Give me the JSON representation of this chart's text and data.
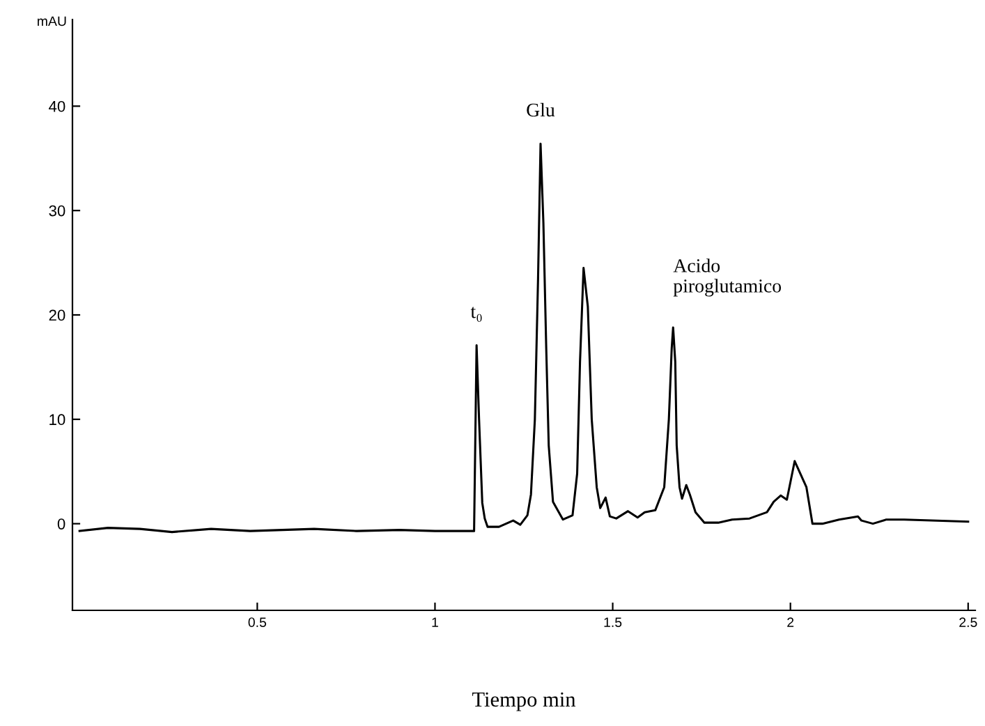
{
  "chart_data": {
    "type": "line",
    "xlabel": "Tiempo min",
    "ylabel": "mAU",
    "color": "#000000",
    "x": [
      0.0,
      0.08,
      0.17,
      0.26,
      0.37,
      0.48,
      0.57,
      0.66,
      0.78,
      0.9,
      1.0,
      1.06,
      1.11,
      1.117,
      1.124,
      1.133,
      1.14,
      1.148,
      1.18,
      1.22,
      1.24,
      1.26,
      1.27,
      1.281,
      1.29,
      1.297,
      1.305,
      1.313,
      1.32,
      1.332,
      1.36,
      1.387,
      1.4,
      1.408,
      1.418,
      1.43,
      1.441,
      1.455,
      1.465,
      1.48,
      1.492,
      1.51,
      1.543,
      1.57,
      1.59,
      1.62,
      1.645,
      1.658,
      1.666,
      1.67,
      1.676,
      1.68,
      1.688,
      1.695,
      1.707,
      1.717,
      1.733,
      1.758,
      1.797,
      1.836,
      1.885,
      1.934,
      1.953,
      1.973,
      1.99,
      2.012,
      2.045,
      2.062,
      2.09,
      2.137,
      2.19,
      2.2,
      2.232,
      2.27,
      2.32,
      2.5
    ],
    "values": [
      -0.7,
      -0.4,
      -0.5,
      -0.8,
      -0.5,
      -0.7,
      -0.6,
      -0.5,
      -0.7,
      -0.6,
      -0.7,
      -0.7,
      -0.7,
      17.1,
      10.0,
      2.0,
      0.5,
      -0.3,
      -0.3,
      0.3,
      -0.1,
      0.8,
      2.8,
      10.0,
      23.5,
      36.4,
      28.8,
      16.8,
      7.5,
      2.1,
      0.4,
      0.8,
      4.8,
      15.5,
      24.5,
      20.8,
      10.0,
      3.5,
      1.5,
      2.5,
      0.7,
      0.5,
      1.2,
      0.6,
      1.1,
      1.3,
      3.5,
      10.0,
      16.8,
      18.8,
      15.5,
      7.5,
      3.5,
      2.4,
      3.7,
      2.8,
      1.1,
      0.1,
      0.1,
      0.4,
      0.5,
      1.1,
      2.1,
      2.7,
      2.3,
      6.0,
      3.5,
      0.0,
      0.0,
      0.4,
      0.7,
      0.3,
      0.0,
      0.4,
      0.4,
      0.2
    ],
    "xlim": [
      -0.02,
      2.52
    ],
    "xticks": [
      0.5,
      1,
      1.5,
      2,
      2.5
    ],
    "ylim": [
      -8.3,
      48.3
    ],
    "yticks": [
      0,
      10,
      20,
      30,
      40
    ],
    "annotations": [
      {
        "text": "t₀",
        "x": 1.117,
        "y": 17.1
      },
      {
        "text": "Glu",
        "x": 1.297,
        "y": 36.4
      },
      {
        "text": "Acido\npiroglutamico",
        "x": 1.67,
        "y": 18.8
      }
    ]
  }
}
